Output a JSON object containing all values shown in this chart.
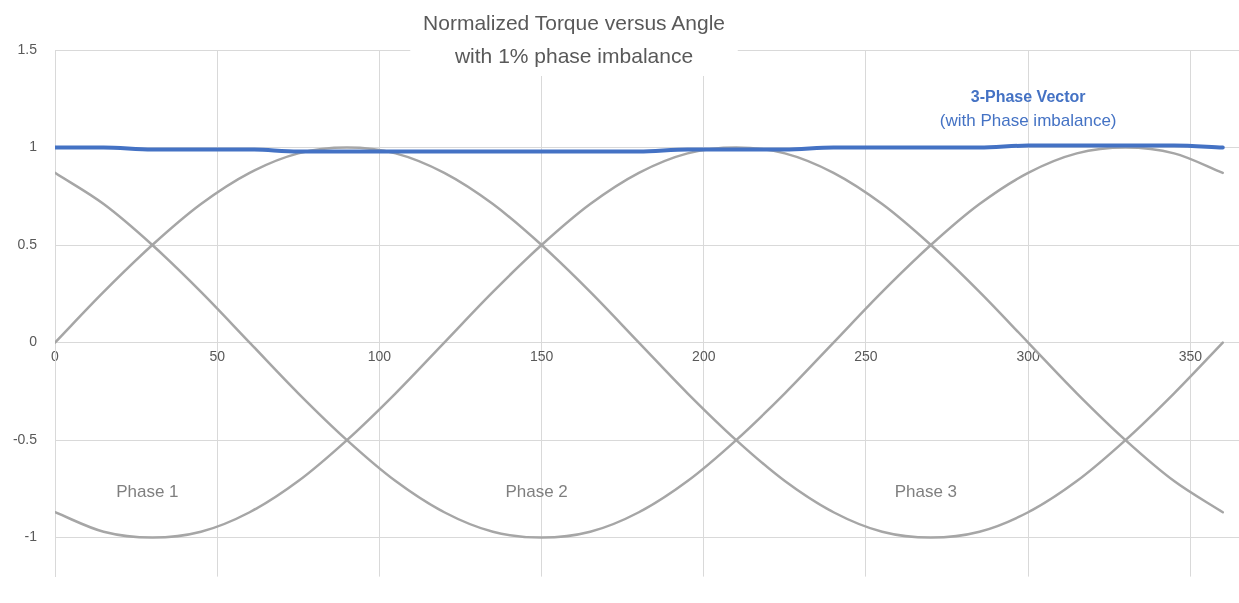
{
  "chart_data": {
    "type": "line",
    "title": "Normalized Torque versus Angle\nwith 1% phase imbalance",
    "x": [
      0,
      15,
      30,
      45,
      60,
      75,
      90,
      105,
      120,
      135,
      150,
      165,
      180,
      195,
      210,
      225,
      240,
      255,
      270,
      285,
      300,
      315,
      330,
      345,
      360
    ],
    "xlim": [
      0,
      365
    ],
    "xticks": [
      0,
      50,
      100,
      150,
      200,
      250,
      300,
      350
    ],
    "ylim": [
      -1.2,
      1.5
    ],
    "yticks": [
      -1,
      -0.5,
      0,
      0.5,
      1,
      1.5
    ],
    "grid": true,
    "legend": false,
    "marker": "none",
    "line_style": "solid",
    "series": [
      {
        "name": "Phase 3",
        "color": "#a6a6a6",
        "values": [
          0,
          0.26,
          0.5,
          0.71,
          0.87,
          0.97,
          1,
          0.97,
          0.87,
          0.71,
          0.5,
          0.26,
          0,
          -0.26,
          -0.5,
          -0.71,
          -0.87,
          -0.97,
          -1,
          -0.97,
          -0.87,
          -0.71,
          -0.5,
          -0.26,
          0
        ]
      },
      {
        "name": "Phase 2",
        "color": "#a6a6a6",
        "values": [
          0.87,
          0.71,
          0.5,
          0.26,
          0,
          -0.26,
          -0.5,
          -0.71,
          -0.87,
          -0.97,
          -1,
          -0.97,
          -0.87,
          -0.71,
          -0.5,
          -0.26,
          0,
          0.26,
          0.5,
          0.71,
          0.87,
          0.97,
          1,
          0.97,
          0.87
        ]
      },
      {
        "name": "Phase 1",
        "color": "#a6a6a6",
        "values": [
          -0.87,
          -0.97,
          -1,
          -0.97,
          -0.87,
          -0.71,
          -0.5,
          -0.26,
          0,
          0.26,
          0.5,
          0.71,
          0.87,
          0.97,
          1,
          0.97,
          0.87,
          0.71,
          0.5,
          0.26,
          0,
          -0.26,
          -0.5,
          -0.71,
          -0.87
        ]
      },
      {
        "name": "3-Phase Vector",
        "color": "#4472c4",
        "values": [
          1,
          1,
          0.99,
          0.99,
          0.99,
          0.98,
          0.98,
          0.98,
          0.98,
          0.98,
          0.98,
          0.98,
          0.98,
          0.99,
          0.99,
          0.99,
          1,
          1,
          1,
          1,
          1.01,
          1.01,
          1.01,
          1.01,
          1
        ]
      }
    ],
    "annotations": [
      "(with Phase imbalance)"
    ]
  }
}
